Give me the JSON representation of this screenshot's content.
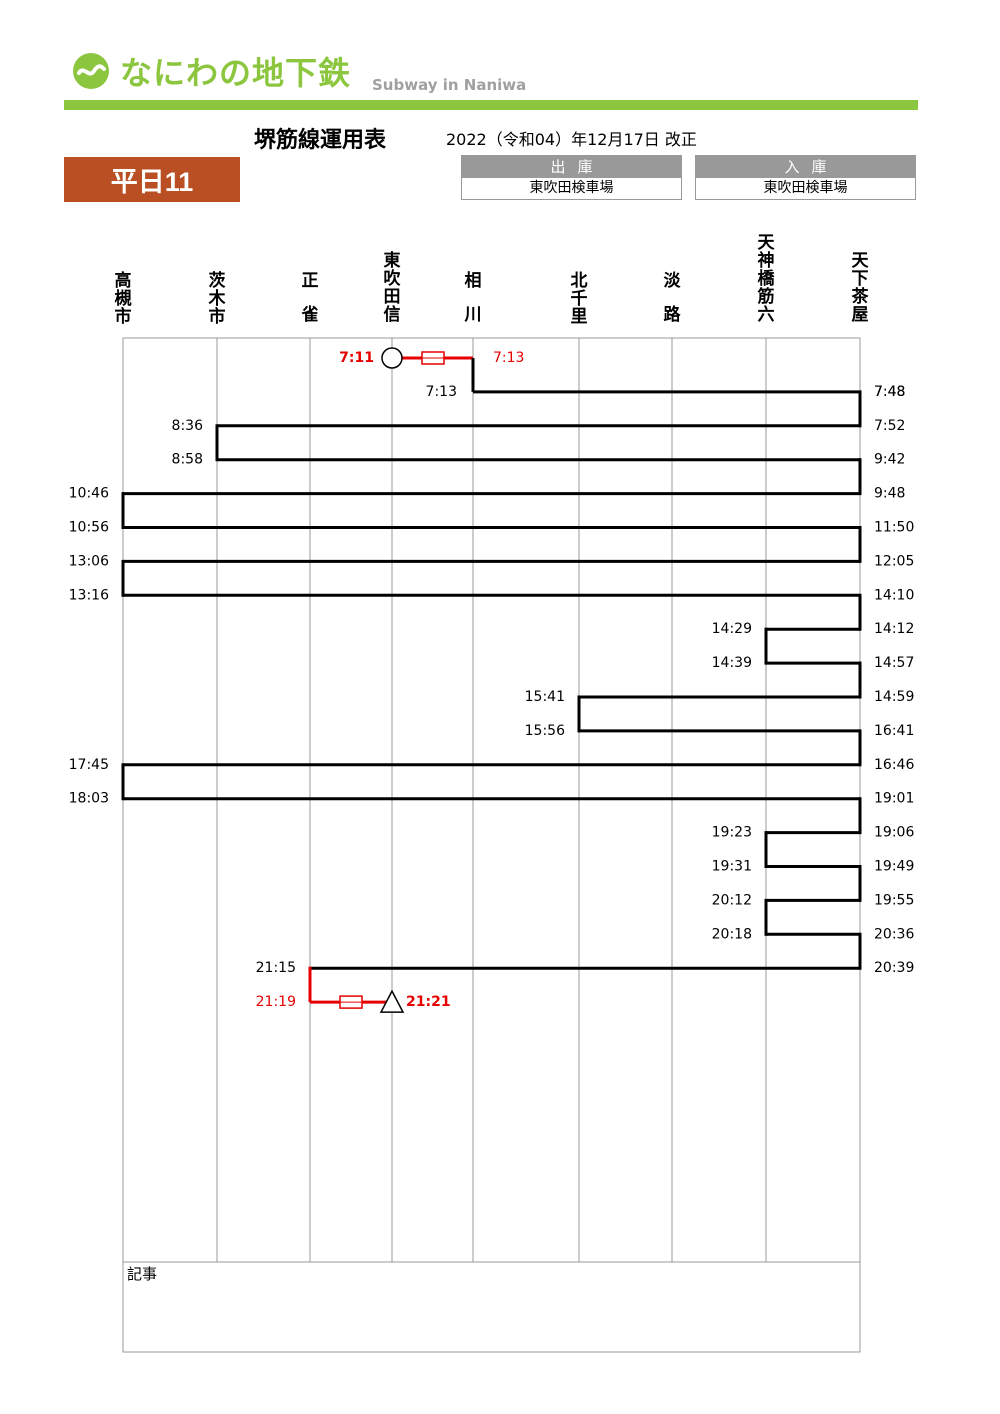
{
  "header": {
    "logo_text": "なにわの地下鉄",
    "logo_sub": "Subway in Naniwa",
    "title": "堺筋線運用表",
    "revision": "2022（令和04）年12月17日 改正",
    "day_badge": "平日11"
  },
  "depot": {
    "out_label": "出庫",
    "out_value": "東吹田検車場",
    "in_label": "入庫",
    "in_value": "東吹田検車場"
  },
  "stations": [
    "高槻市",
    "茨木市",
    "正雀",
    "東吹田信",
    "相川",
    "北千里",
    "淡路",
    "天神橋筋六",
    "天下茶屋"
  ],
  "notes_label": "記事",
  "colors": {
    "accent": "#8cc63f",
    "badge": "#b94f23",
    "deadhead": "#e60000",
    "grey": "#999999"
  },
  "diagram": {
    "start": {
      "departure": "7:11",
      "arrival": "7:13"
    },
    "end": {
      "departure": "21:19",
      "arrival": "21:21"
    },
    "first_service_start": "7:13",
    "last_service_end": "21:15",
    "segments": [
      {
        "from": "相川",
        "dep": "7:13",
        "to": "天下茶屋",
        "arr": "7:48"
      },
      {
        "from": "天下茶屋",
        "dep": "7:52",
        "to": "茨木市",
        "arr": "8:36"
      },
      {
        "from": "茨木市",
        "dep": "8:58",
        "to": "天下茶屋",
        "arr": "9:42"
      },
      {
        "from": "天下茶屋",
        "dep": "9:48",
        "to": "高槻市",
        "arr": "10:46"
      },
      {
        "from": "高槻市",
        "dep": "10:56",
        "to": "天下茶屋",
        "arr": "11:50"
      },
      {
        "from": "天下茶屋",
        "dep": "12:05",
        "to": "高槻市",
        "arr": "13:06"
      },
      {
        "from": "高槻市",
        "dep": "13:16",
        "to": "天下茶屋",
        "arr": "14:10"
      },
      {
        "from": "天下茶屋",
        "dep": "14:12",
        "to": "天神橋筋六",
        "arr": "14:29"
      },
      {
        "from": "天神橋筋六",
        "dep": "14:39",
        "to": "天下茶屋",
        "arr": "14:57"
      },
      {
        "from": "天下茶屋",
        "dep": "14:59",
        "to": "北千里",
        "arr": "15:41"
      },
      {
        "from": "北千里",
        "dep": "15:56",
        "to": "天下茶屋",
        "arr": "16:41"
      },
      {
        "from": "天下茶屋",
        "dep": "16:46",
        "to": "高槻市",
        "arr": "17:45"
      },
      {
        "from": "高槻市",
        "dep": "18:03",
        "to": "天下茶屋",
        "arr": "19:01"
      },
      {
        "from": "天下茶屋",
        "dep": "19:06",
        "to": "天神橋筋六",
        "arr": "19:23"
      },
      {
        "from": "天神橋筋六",
        "dep": "19:31",
        "to": "天下茶屋",
        "arr": "19:49"
      },
      {
        "from": "天下茶屋",
        "dep": "19:55",
        "to": "天神橋筋六",
        "arr": "20:12"
      },
      {
        "from": "天神橋筋六",
        "dep": "20:18",
        "to": "天下茶屋",
        "arr": "20:36"
      },
      {
        "from": "天下茶屋",
        "dep": "20:39",
        "to": "正雀",
        "arr": "21:15"
      }
    ]
  }
}
